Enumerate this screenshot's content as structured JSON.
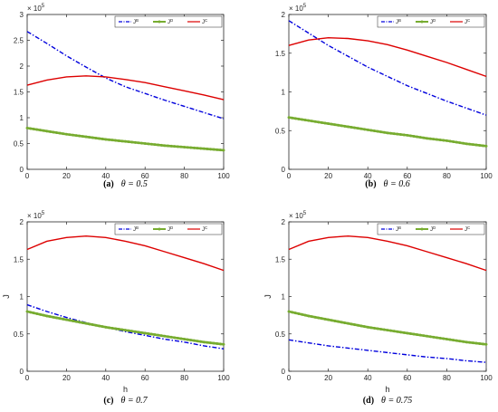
{
  "colors": {
    "JB": "#0000dd",
    "JD": "#77ac30",
    "JC": "#dd0000"
  },
  "chart_data": [
    {
      "type": "line",
      "caption_label": "(a)",
      "caption_theta": "θ = 0.5",
      "multiplier": "× 10",
      "multiplier_exp": "5",
      "xlabel": "",
      "ylabel": "",
      "xlim": [
        0,
        100
      ],
      "ylim": [
        0,
        3
      ],
      "xticks": [
        0,
        20,
        40,
        60,
        80,
        100
      ],
      "yticks": [
        0,
        0.5,
        1,
        1.5,
        2,
        2.5,
        3
      ],
      "ytick_labels": [
        "0",
        "0.5",
        "1",
        "1.5",
        "2",
        "2.5",
        "3"
      ],
      "legend_position": "top-right",
      "x": [
        0,
        10,
        20,
        30,
        40,
        50,
        60,
        70,
        80,
        90,
        100
      ],
      "series": [
        {
          "name": "J",
          "name_sup": "B",
          "style": "dashdot",
          "color": "#0000dd",
          "values": [
            2.67,
            2.44,
            2.2,
            1.98,
            1.77,
            1.6,
            1.47,
            1.34,
            1.22,
            1.1,
            0.98
          ]
        },
        {
          "name": "J",
          "name_sup": "D",
          "style": "markers",
          "color": "#77ac30",
          "values": [
            0.8,
            0.74,
            0.68,
            0.63,
            0.58,
            0.54,
            0.5,
            0.46,
            0.43,
            0.4,
            0.37
          ]
        },
        {
          "name": "J",
          "name_sup": "C",
          "style": "solid",
          "color": "#dd0000",
          "values": [
            1.63,
            1.73,
            1.79,
            1.81,
            1.79,
            1.74,
            1.68,
            1.6,
            1.52,
            1.44,
            1.35
          ]
        }
      ]
    },
    {
      "type": "line",
      "caption_label": "(b)",
      "caption_theta": "θ = 0.6",
      "multiplier": "× 10",
      "multiplier_exp": "5",
      "xlabel": "",
      "ylabel": "",
      "xlim": [
        0,
        100
      ],
      "ylim": [
        0,
        2
      ],
      "xticks": [
        0,
        20,
        40,
        60,
        80,
        100
      ],
      "yticks": [
        0,
        0.5,
        1,
        1.5,
        2
      ],
      "ytick_labels": [
        "0",
        "0.5",
        "1",
        "1.5",
        "2"
      ],
      "legend_position": "top-right",
      "x": [
        0,
        10,
        20,
        30,
        40,
        50,
        60,
        70,
        80,
        90,
        100
      ],
      "series": [
        {
          "name": "J",
          "name_sup": "B",
          "style": "dashdot",
          "color": "#0000dd",
          "values": [
            1.92,
            1.76,
            1.6,
            1.46,
            1.32,
            1.2,
            1.08,
            0.98,
            0.88,
            0.79,
            0.7
          ]
        },
        {
          "name": "J",
          "name_sup": "D",
          "style": "markers",
          "color": "#77ac30",
          "values": [
            0.67,
            0.63,
            0.59,
            0.55,
            0.51,
            0.47,
            0.44,
            0.4,
            0.37,
            0.33,
            0.3
          ]
        },
        {
          "name": "J",
          "name_sup": "C",
          "style": "solid",
          "color": "#dd0000",
          "values": [
            1.6,
            1.67,
            1.7,
            1.69,
            1.66,
            1.61,
            1.54,
            1.46,
            1.38,
            1.29,
            1.2
          ]
        }
      ]
    },
    {
      "type": "line",
      "caption_label": "(c)",
      "caption_theta": "θ = 0.7",
      "multiplier": "× 10",
      "multiplier_exp": "5",
      "xlabel": "h",
      "ylabel": "J",
      "xlim": [
        0,
        100
      ],
      "ylim": [
        0,
        2
      ],
      "xticks": [
        0,
        20,
        40,
        60,
        80,
        100
      ],
      "yticks": [
        0,
        0.5,
        1,
        1.5,
        2
      ],
      "ytick_labels": [
        "0",
        "0.5",
        "1",
        "1.5",
        "2"
      ],
      "legend_position": "top-right",
      "x": [
        0,
        10,
        20,
        30,
        40,
        50,
        60,
        70,
        80,
        90,
        100
      ],
      "series": [
        {
          "name": "J",
          "name_sup": "B",
          "style": "dashdot",
          "color": "#0000dd",
          "values": [
            0.89,
            0.8,
            0.72,
            0.65,
            0.59,
            0.53,
            0.48,
            0.43,
            0.39,
            0.34,
            0.3
          ]
        },
        {
          "name": "J",
          "name_sup": "D",
          "style": "markers",
          "color": "#77ac30",
          "values": [
            0.8,
            0.74,
            0.69,
            0.64,
            0.59,
            0.55,
            0.51,
            0.47,
            0.43,
            0.39,
            0.36
          ]
        },
        {
          "name": "J",
          "name_sup": "C",
          "style": "solid",
          "color": "#dd0000",
          "values": [
            1.63,
            1.74,
            1.79,
            1.81,
            1.79,
            1.74,
            1.68,
            1.6,
            1.52,
            1.44,
            1.35
          ]
        }
      ]
    },
    {
      "type": "line",
      "caption_label": "(d)",
      "caption_theta": "θ = 0.75",
      "multiplier": "× 10",
      "multiplier_exp": "5",
      "xlabel": "h",
      "ylabel": "J",
      "xlim": [
        0,
        100
      ],
      "ylim": [
        0,
        2
      ],
      "xticks": [
        0,
        20,
        40,
        60,
        80,
        100
      ],
      "yticks": [
        0,
        0.5,
        1,
        1.5,
        2
      ],
      "ytick_labels": [
        "0",
        "0.5",
        "1",
        "1.5",
        "2"
      ],
      "legend_position": "top-right",
      "x": [
        0,
        10,
        20,
        30,
        40,
        50,
        60,
        70,
        80,
        90,
        100
      ],
      "series": [
        {
          "name": "J",
          "name_sup": "B",
          "style": "dashdot",
          "color": "#0000dd",
          "values": [
            0.42,
            0.38,
            0.34,
            0.31,
            0.28,
            0.25,
            0.22,
            0.19,
            0.17,
            0.14,
            0.12
          ]
        },
        {
          "name": "J",
          "name_sup": "D",
          "style": "markers",
          "color": "#77ac30",
          "values": [
            0.8,
            0.74,
            0.69,
            0.64,
            0.59,
            0.55,
            0.51,
            0.47,
            0.43,
            0.39,
            0.36
          ]
        },
        {
          "name": "J",
          "name_sup": "C",
          "style": "solid",
          "color": "#dd0000",
          "values": [
            1.63,
            1.74,
            1.79,
            1.81,
            1.79,
            1.74,
            1.68,
            1.6,
            1.52,
            1.44,
            1.35
          ]
        }
      ]
    }
  ]
}
